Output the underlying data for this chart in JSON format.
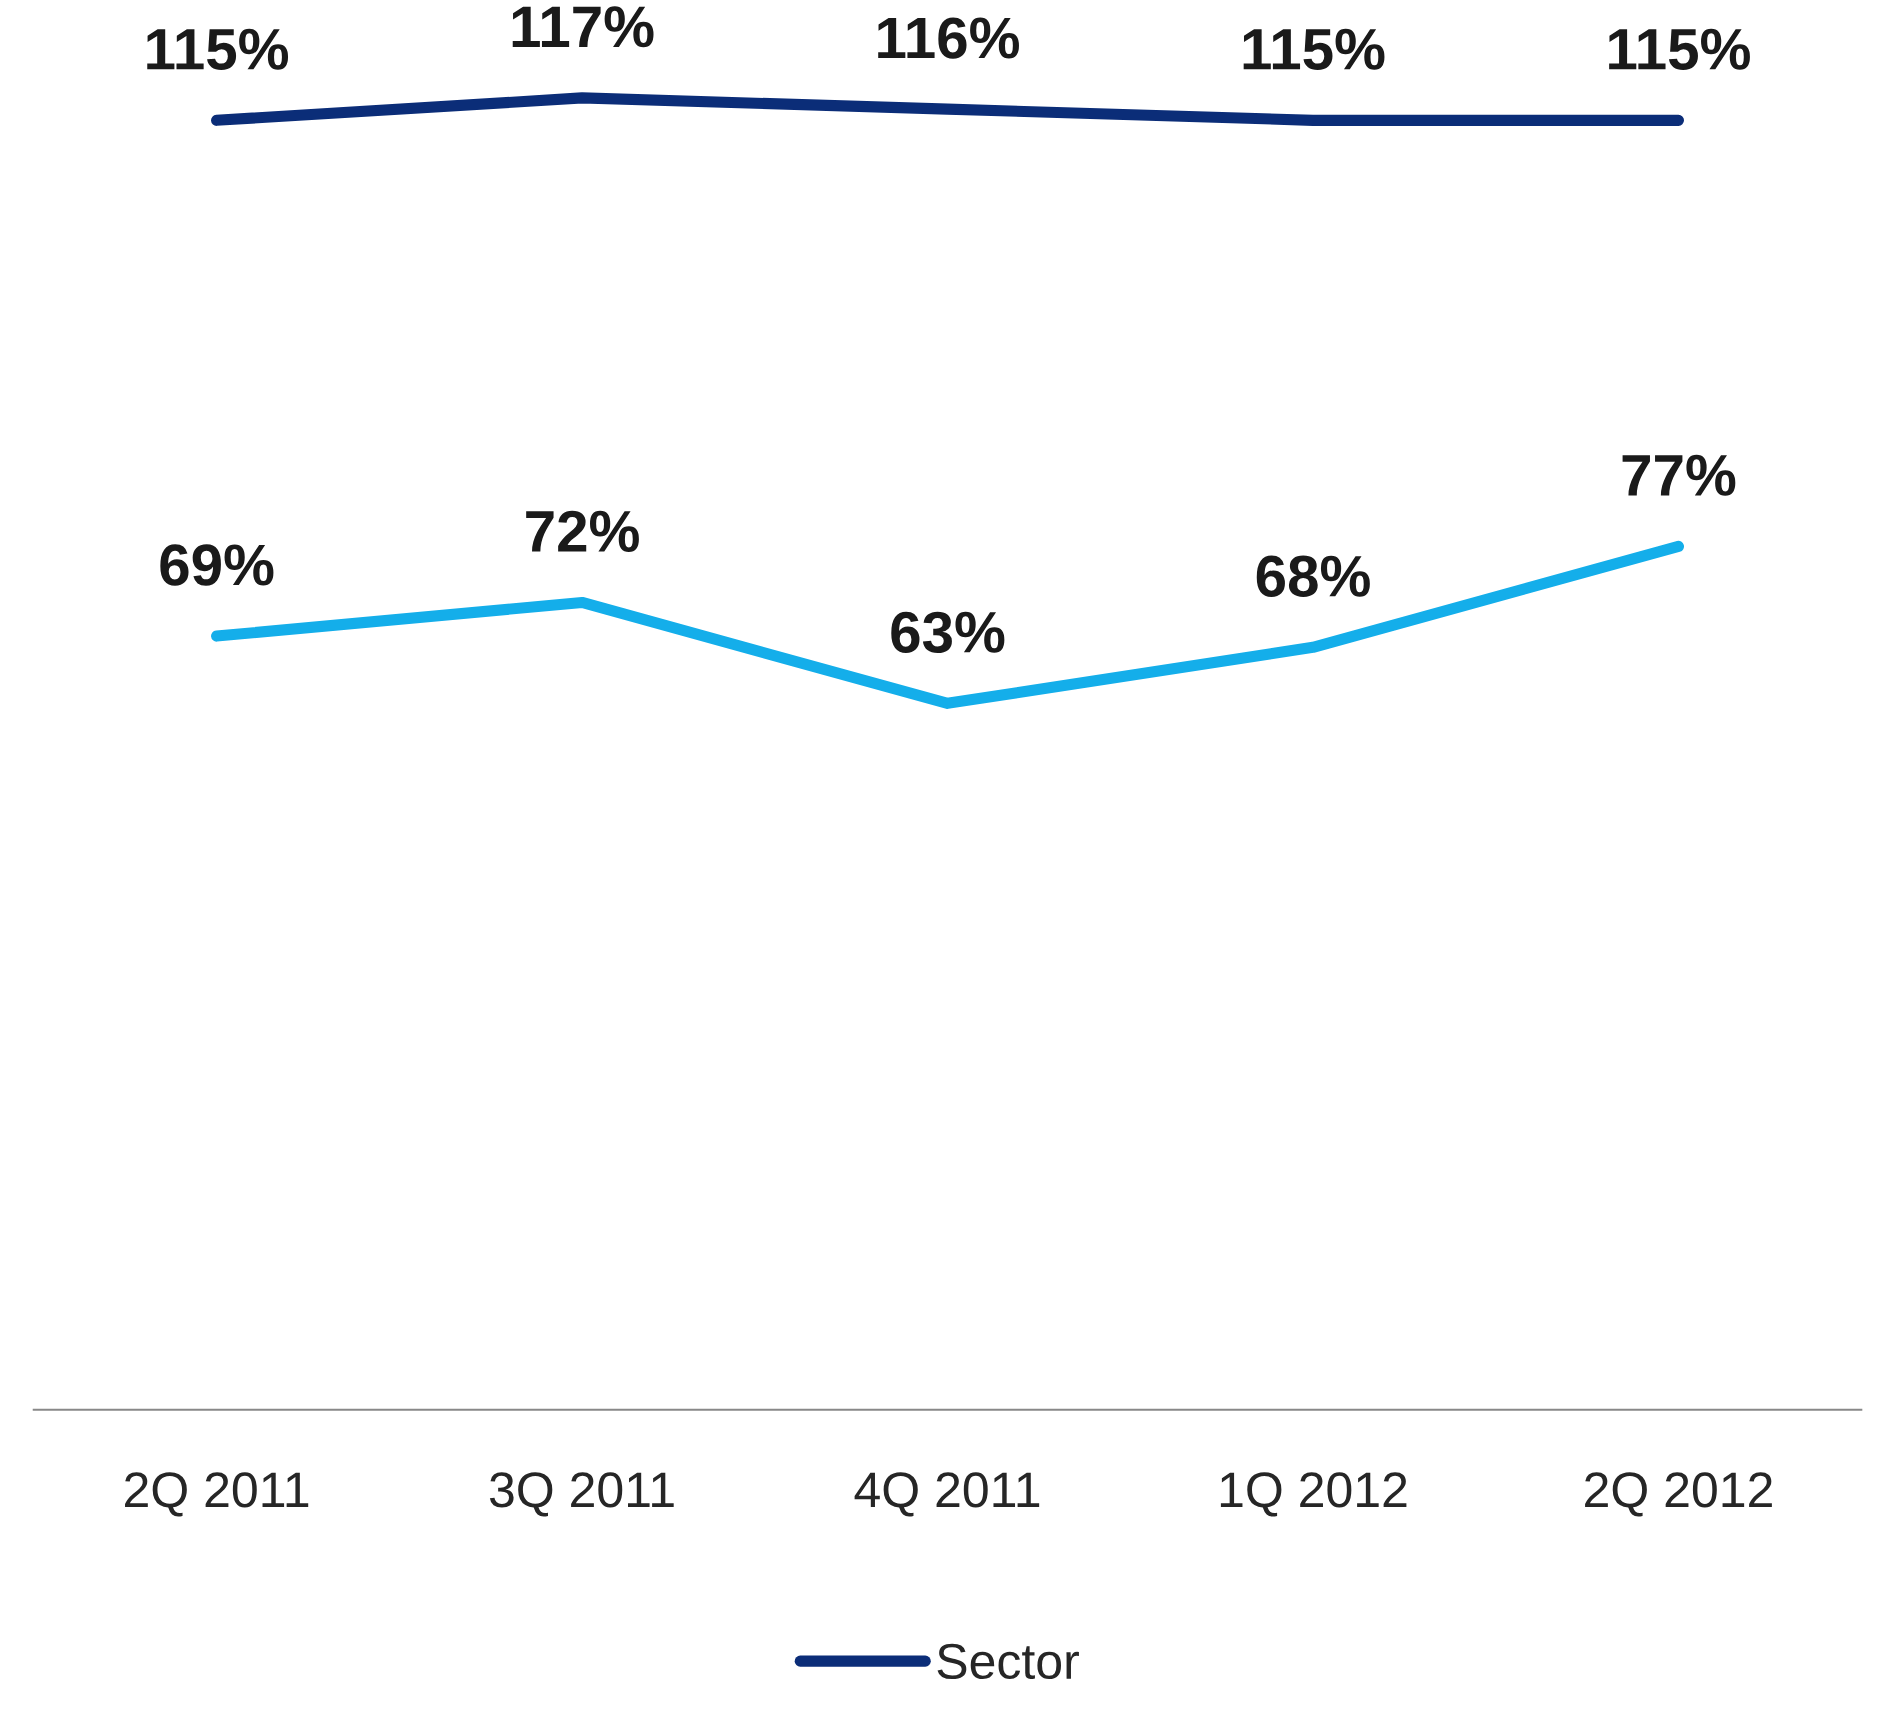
{
  "chart_data": {
    "type": "line",
    "categories": [
      "2Q 2011",
      "3Q 2011",
      "4Q 2011",
      "1Q 2012",
      "2Q 2012"
    ],
    "series": [
      {
        "color": "#14aeea",
        "values": [
          69,
          72,
          63,
          68,
          77
        ],
        "value_labels": [
          "69%",
          "72%",
          "63%",
          "68%",
          "77%"
        ]
      },
      {
        "name": "Sector",
        "color": "#0b2d78",
        "values": [
          115,
          117,
          116,
          115,
          115
        ],
        "value_labels": [
          "115%",
          "117%",
          "116%",
          "115%",
          "115%"
        ]
      }
    ],
    "tick_labels": "x",
    "grid": false,
    "legend": "bottom",
    "marker": "none",
    "line_style": "solid"
  }
}
